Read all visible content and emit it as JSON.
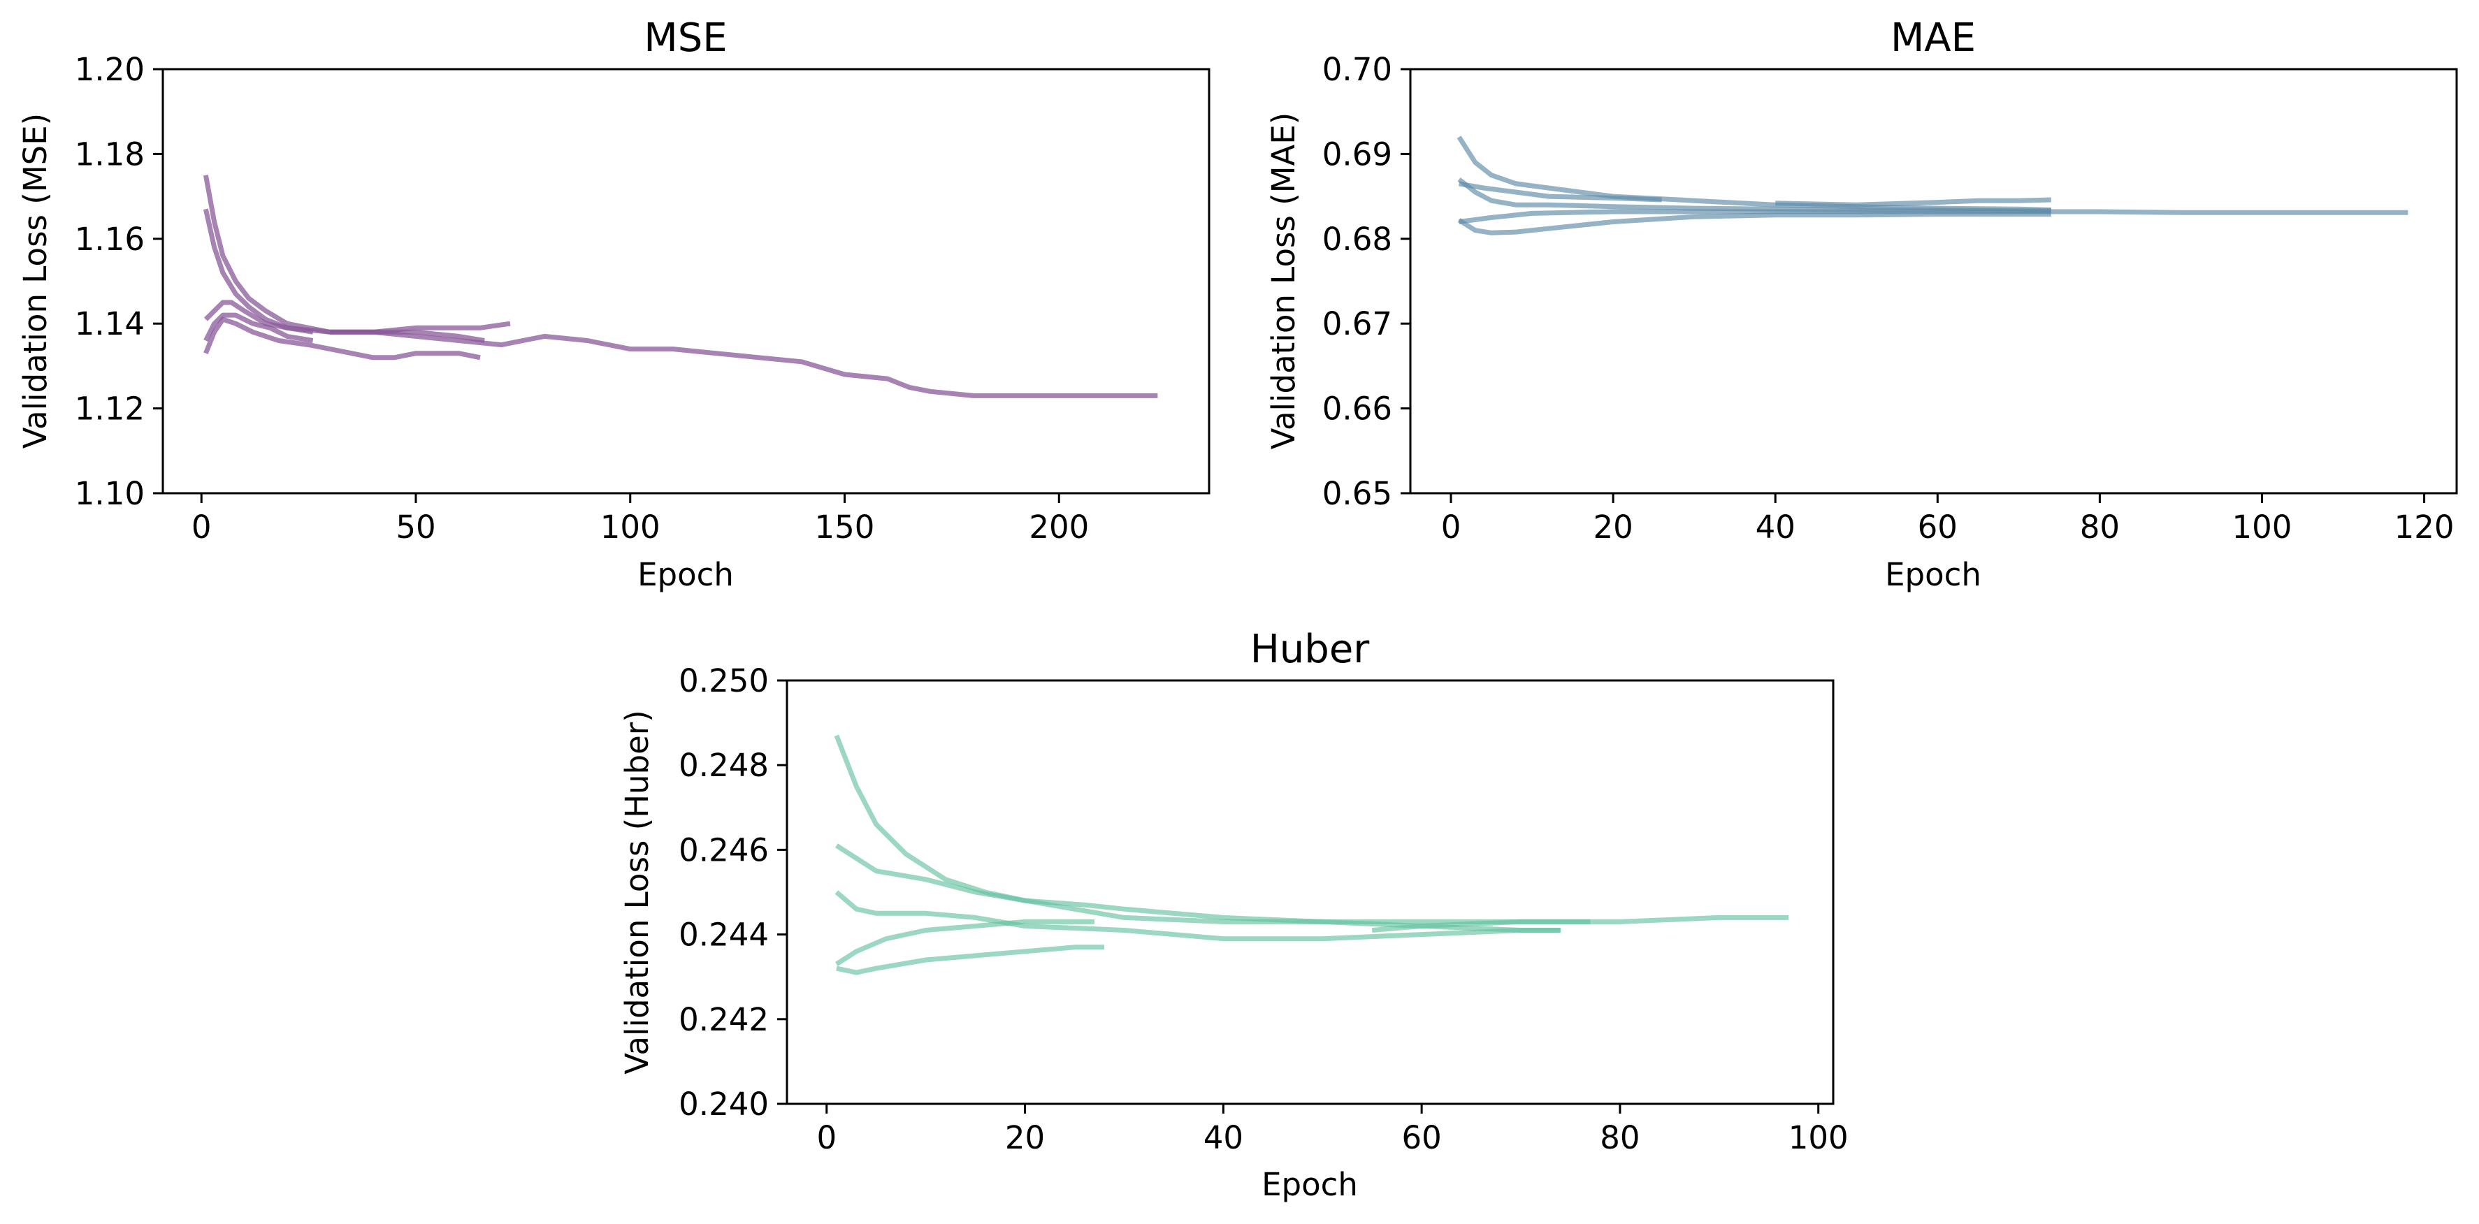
{
  "chart_data": [
    {
      "type": "line",
      "title": "MSE",
      "xlabel": "Epoch",
      "ylabel": "Validation Loss (MSE)",
      "xlim": [
        -9,
        235
      ],
      "ylim": [
        1.1,
        1.2
      ],
      "xticks": [
        0,
        50,
        100,
        150,
        200
      ],
      "yticks": [
        1.1,
        1.12,
        1.14,
        1.16,
        1.18,
        1.2
      ],
      "ytick_labels": [
        "1.10",
        "1.12",
        "1.14",
        "1.16",
        "1.18",
        "1.20"
      ],
      "color": "#8a5a9a",
      "opacity": 0.75,
      "series": [
        {
          "x": [
            1,
            3,
            5,
            8,
            11,
            15,
            20,
            25,
            30,
            40,
            50,
            60,
            70,
            80,
            90,
            100,
            110,
            120,
            130,
            140,
            150,
            160,
            165,
            170,
            180,
            190,
            200,
            210,
            220,
            223
          ],
          "y": [
            1.175,
            1.164,
            1.156,
            1.15,
            1.146,
            1.143,
            1.14,
            1.139,
            1.138,
            1.138,
            1.137,
            1.136,
            1.135,
            1.137,
            1.136,
            1.134,
            1.134,
            1.133,
            1.132,
            1.131,
            1.128,
            1.127,
            1.125,
            1.124,
            1.123,
            1.123,
            1.123,
            1.123,
            1.123,
            1.123
          ]
        },
        {
          "x": [
            1,
            3,
            5,
            8,
            11,
            15,
            20,
            26
          ],
          "y": [
            1.167,
            1.158,
            1.152,
            1.147,
            1.144,
            1.141,
            1.139,
            1.138
          ]
        },
        {
          "x": [
            1,
            3,
            5,
            7,
            10,
            15,
            20,
            30,
            40,
            50,
            60,
            66
          ],
          "y": [
            1.141,
            1.143,
            1.145,
            1.145,
            1.143,
            1.14,
            1.139,
            1.138,
            1.138,
            1.138,
            1.137,
            1.136
          ]
        },
        {
          "x": [
            1,
            3,
            5,
            8,
            12,
            16,
            20,
            26
          ],
          "y": [
            1.136,
            1.14,
            1.142,
            1.142,
            1.14,
            1.139,
            1.137,
            1.136
          ]
        },
        {
          "x": [
            1,
            3,
            5,
            8,
            12,
            18,
            25,
            30,
            35,
            40,
            45,
            50,
            55,
            60,
            65
          ],
          "y": [
            1.133,
            1.138,
            1.141,
            1.14,
            1.138,
            1.136,
            1.135,
            1.134,
            1.133,
            1.132,
            1.132,
            1.133,
            1.133,
            1.133,
            1.132
          ]
        },
        {
          "x": [
            30,
            40,
            50,
            60,
            65,
            72
          ],
          "y": [
            1.138,
            1.138,
            1.139,
            1.139,
            1.139,
            1.14
          ]
        }
      ]
    },
    {
      "type": "line",
      "title": "MAE",
      "xlabel": "Epoch",
      "ylabel": "Validation Loss (MAE)",
      "xlim": [
        -5,
        124
      ],
      "ylim": [
        0.65,
        0.7
      ],
      "xticks": [
        0,
        20,
        40,
        60,
        80,
        100,
        120
      ],
      "yticks": [
        0.65,
        0.66,
        0.67,
        0.68,
        0.69,
        0.7
      ],
      "ytick_labels": [
        "0.65",
        "0.66",
        "0.67",
        "0.68",
        "0.69",
        "0.70"
      ],
      "color": "#5d8aa8",
      "opacity": 0.65,
      "series": [
        {
          "x": [
            1,
            3,
            5,
            8,
            12,
            20,
            30,
            40,
            50,
            60,
            70,
            74
          ],
          "y": [
            0.692,
            0.689,
            0.6875,
            0.6865,
            0.686,
            0.685,
            0.6845,
            0.684,
            0.6838,
            0.6836,
            0.6835,
            0.6834
          ]
        },
        {
          "x": [
            1,
            3,
            5,
            8,
            12,
            20,
            30,
            40,
            50,
            60,
            70,
            74
          ],
          "y": [
            0.687,
            0.6855,
            0.6845,
            0.684,
            0.684,
            0.6838,
            0.6836,
            0.6835,
            0.6834,
            0.6834,
            0.6833,
            0.6833
          ]
        },
        {
          "x": [
            1,
            5,
            10,
            20,
            30,
            40,
            50,
            60,
            70,
            80,
            90,
            100,
            110,
            118
          ],
          "y": [
            0.682,
            0.6825,
            0.683,
            0.6832,
            0.6832,
            0.6832,
            0.6832,
            0.6832,
            0.6832,
            0.6832,
            0.6831,
            0.6831,
            0.6831,
            0.6831
          ]
        },
        {
          "x": [
            1,
            3,
            5,
            8,
            12,
            20,
            30,
            40,
            50,
            60,
            70,
            74
          ],
          "y": [
            0.6822,
            0.681,
            0.6807,
            0.6808,
            0.6812,
            0.682,
            0.6826,
            0.6828,
            0.6828,
            0.6829,
            0.6829,
            0.6829
          ]
        },
        {
          "x": [
            1,
            4,
            8,
            12,
            20,
            26
          ],
          "y": [
            0.6865,
            0.686,
            0.6855,
            0.685,
            0.6848,
            0.6846
          ]
        },
        {
          "x": [
            40,
            50,
            60,
            65,
            70,
            74
          ],
          "y": [
            0.6842,
            0.684,
            0.6843,
            0.6845,
            0.6845,
            0.6846
          ]
        }
      ]
    },
    {
      "type": "line",
      "title": "Huber",
      "xlabel": "Epoch",
      "ylabel": "Validation Loss (Huber)",
      "xlim": [
        -4,
        101.5
      ],
      "ylim": [
        0.24,
        0.25
      ],
      "xticks": [
        0,
        20,
        40,
        60,
        80,
        100
      ],
      "yticks": [
        0.24,
        0.242,
        0.244,
        0.246,
        0.248,
        0.25
      ],
      "ytick_labels": [
        "0.240",
        "0.242",
        "0.244",
        "0.246",
        "0.248",
        "0.250"
      ],
      "color": "#66c2a0",
      "opacity": 0.65,
      "series": [
        {
          "x": [
            1,
            3,
            5,
            8,
            12,
            16,
            20,
            26,
            30,
            40,
            50,
            60,
            70,
            74
          ],
          "y": [
            0.2487,
            0.2475,
            0.2466,
            0.2459,
            0.2453,
            0.245,
            0.2448,
            0.2447,
            0.2446,
            0.2444,
            0.2443,
            0.2442,
            0.2441,
            0.2441
          ]
        },
        {
          "x": [
            1,
            3,
            5,
            10,
            15,
            20,
            30,
            40,
            50,
            60,
            70,
            77
          ],
          "y": [
            0.2461,
            0.2458,
            0.2455,
            0.2453,
            0.245,
            0.2448,
            0.2444,
            0.2443,
            0.2443,
            0.2443,
            0.2443,
            0.2443
          ]
        },
        {
          "x": [
            1,
            3,
            5,
            10,
            15,
            20,
            30,
            40,
            50,
            60,
            70,
            74
          ],
          "y": [
            0.245,
            0.2446,
            0.2445,
            0.2445,
            0.2444,
            0.2442,
            0.2441,
            0.2439,
            0.2439,
            0.244,
            0.2441,
            0.2441
          ]
        },
        {
          "x": [
            1,
            3,
            6,
            10,
            15,
            20,
            27
          ],
          "y": [
            0.2433,
            0.2436,
            0.2439,
            0.2441,
            0.2442,
            0.2443,
            0.2443
          ]
        },
        {
          "x": [
            1,
            3,
            5,
            10,
            15,
            20,
            25,
            28
          ],
          "y": [
            0.2432,
            0.2431,
            0.2432,
            0.2434,
            0.2435,
            0.2436,
            0.2437,
            0.2437
          ]
        },
        {
          "x": [
            55,
            60,
            70,
            75,
            80,
            90,
            97
          ],
          "y": [
            0.2441,
            0.2442,
            0.2443,
            0.2443,
            0.2443,
            0.2444,
            0.2444
          ]
        }
      ]
    }
  ]
}
